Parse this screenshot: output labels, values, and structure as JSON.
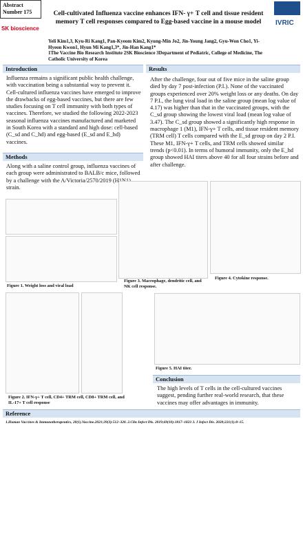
{
  "header": {
    "abstract_label": "Abstract Number 175",
    "logo_left": "SK bioscience",
    "logo_right": "IVRIC",
    "title": "Cell-cultivated Influenza vaccine enhances IFN- γ+ T cell and tissue resident memory T cell responses compared to Egg-based vaccine in a mouse model",
    "authors": "Yeli Kim1,3, Kyu-Ri Kang1, Pan-Kyeom Kim2, Kyung-Min Jo2, Jin-Young Jang2, Gyu-Won Cho1, Yi-Hyeon Kwon1, Hyun Mi Kang1,3*, Jin-Han Kang1*",
    "affiliations": "1The Vaccine Bio Research Institute 2SK Bioscience 3Department of Pediatric, College of Medicine, The Catholic University of Korea"
  },
  "introduction": {
    "heading": "Introduction",
    "text": "Influenza remains a significant public health challenge, with vaccination being a substantial way to prevent it. Cell-cultured influenza vaccines have emerged to improve the drawbacks of egg-based vaccines, but there are few studies focusing on T cell immunity with both types of vaccines. Therefore, we studied the following 2022-2023 seasonal influenza vaccines manufactured and marketed in South Korea with a standard and high dose: cell-based (C_sd and C_hd) and egg-based (E_sd and E_hd) vaccines."
  },
  "methods": {
    "heading": "Methods",
    "text": "Along with a saline control group, influenza vaccines of each group were administrated to BALB/c mice, followed by a challenge with the A/Victoria/2570/2019 (H1N1) strain."
  },
  "results": {
    "heading": "Results",
    "text": "After the challenge, four out of five mice in the saline group died by day 7 post-infection (P.I.). None of the vaccinated groups experienced over 20% weight loss or any deaths. On day 7 P.I., the lung viral load in the saline group (mean log value of 4.17) was higher than that in the vaccinated groups, with the C_sd group showing the lowest viral load (mean log value of 3.47). The C_sd group showed a significantly high response in macrophage 1 (M1), IFN-γ+ T cells, and tissue resident memory (TRM cell) T cells compared with the E_sd group on day 2 P.I. These M1, IFN-γ+ T cells, and TRM cells showed similar trends (p<0.01). In terms of humoral immunity, only the E_hd group showed HAI titers above 40 for all four strains before and after challenge."
  },
  "figures": {
    "fig1": "Figure 1. Weight loss and viral load",
    "fig2": "Figure 2. IFN-γ+ T cell, CD4+ TRM cell, CD8+ TRM cell, and IL-17+ T cell response",
    "fig3": "Figure 3. Macrophage, dendritic cell, and NK cell response.",
    "fig4": "Figure 4. Cytokine response.",
    "fig5": "Figure 5. HAI titer."
  },
  "conclusion": {
    "heading": "Conclusion",
    "text": "The high levels of T cells in the cell-cultured vaccines suggest, pending further real-world research, that these vaccines may offer advantages in immunity."
  },
  "reference": {
    "heading": "Reference",
    "text": "1.Human Vaccines & Immunotherapeutics, 20(1).Vaccine.2021;39(3):512–320. 2.Clin Infect Dis. 2019;69(10):1817–1823 3. J Infect Dis. 2020;221(1):8–15."
  }
}
